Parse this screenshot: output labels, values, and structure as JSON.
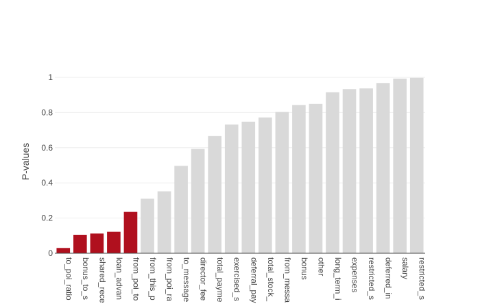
{
  "chart_data": {
    "type": "bar",
    "title": "",
    "xlabel": "",
    "ylabel": "P-values",
    "ylim": [
      0,
      1.0
    ],
    "yticks": [
      "0",
      "0.2",
      "0.4",
      "0.6",
      "0.8",
      "1"
    ],
    "grid": true,
    "colors": {
      "significant": "#b0101e",
      "not_significant": "#d9d9d9",
      "grid": "#eeeeee",
      "axis": "#444444"
    },
    "categories": [
      "to_poi_ratio",
      "bonus_to_s",
      "shared_rece",
      "loan_advan",
      "from_poi_to",
      "from_this_p",
      "from_poi_ra",
      "to_message",
      "director_fee",
      "total_payme",
      "exercised_s",
      "deferral_pay",
      "total_stock_",
      "from_messa",
      "bonus",
      "other",
      "long_term_i",
      "expenses",
      "restricted_s",
      "deferred_in",
      "salary",
      "restricted_s"
    ],
    "values": [
      0.03,
      0.105,
      0.112,
      0.122,
      0.235,
      0.31,
      0.352,
      0.497,
      0.593,
      0.666,
      0.732,
      0.748,
      0.772,
      0.803,
      0.843,
      0.849,
      0.915,
      0.933,
      0.937,
      0.968,
      0.993,
      0.997
    ],
    "significant": [
      true,
      true,
      true,
      true,
      true,
      false,
      false,
      false,
      false,
      false,
      false,
      false,
      false,
      false,
      false,
      false,
      false,
      false,
      false,
      false,
      false,
      false
    ]
  }
}
